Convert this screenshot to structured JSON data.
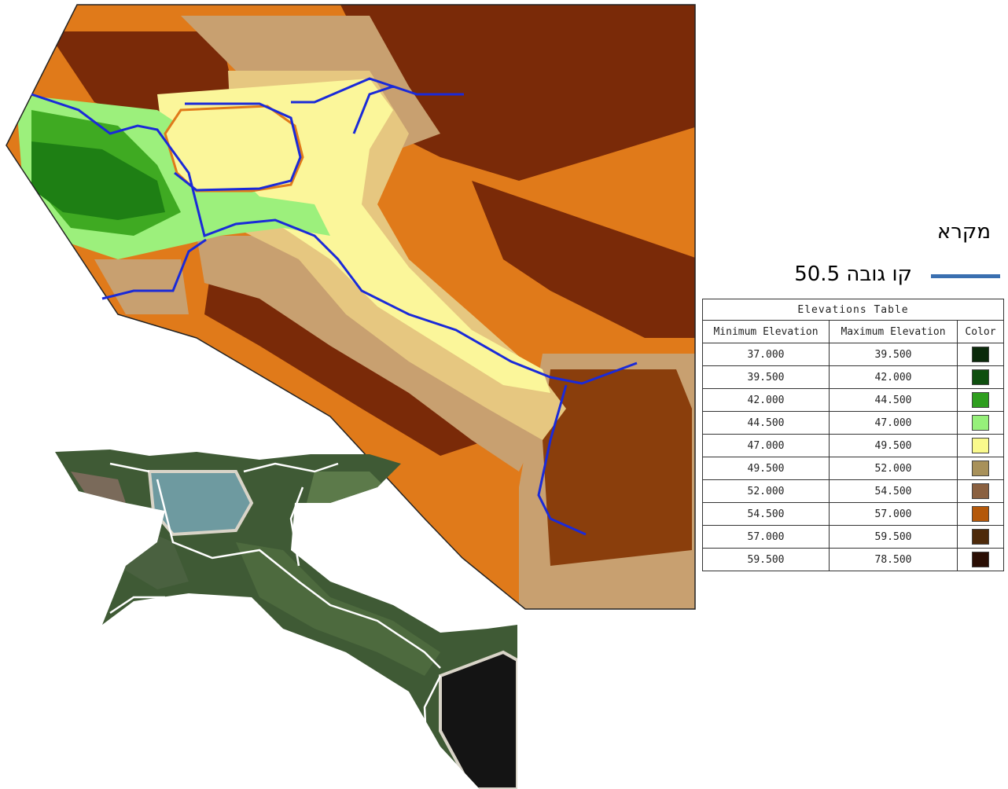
{
  "legend": {
    "title": "מקרא",
    "contour_label": "קו גובה 50.5",
    "contour_color": "#3a6fb0"
  },
  "elevation_table": {
    "title": "Elevations Table",
    "headers": [
      "Minimum Elevation",
      "Maximum Elevation",
      "Color"
    ],
    "rows": [
      {
        "min": "37.000",
        "max": "39.500",
        "color": "#0b2a0b"
      },
      {
        "min": "39.500",
        "max": "42.000",
        "color": "#0f4f0f"
      },
      {
        "min": "42.000",
        "max": "44.500",
        "color": "#2e9e1e"
      },
      {
        "min": "44.500",
        "max": "47.000",
        "color": "#96f07a"
      },
      {
        "min": "47.000",
        "max": "49.500",
        "color": "#fafa8c"
      },
      {
        "min": "49.500",
        "max": "52.000",
        "color": "#a8915a"
      },
      {
        "min": "52.000",
        "max": "54.500",
        "color": "#8a6040"
      },
      {
        "min": "54.500",
        "max": "57.000",
        "color": "#b4580a"
      },
      {
        "min": "57.000",
        "max": "59.500",
        "color": "#4e2a0a"
      },
      {
        "min": "59.500",
        "max": "78.500",
        "color": "#2a0e04"
      }
    ]
  },
  "map_colors": {
    "dark_brown": "#7a2a08",
    "orange": "#e07a1a",
    "tan": "#c8a070",
    "light_tan": "#e6c780",
    "yellow": "#fbf69a",
    "light_green": "#9cf07c",
    "green": "#3faa22",
    "dark_green": "#1e7f14",
    "contour_blue": "#1a2ad8"
  }
}
